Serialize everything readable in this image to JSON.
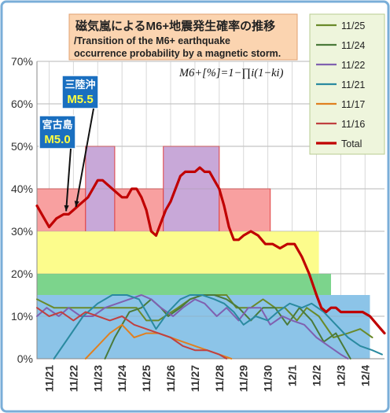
{
  "chart_data": {
    "type": "line",
    "title": "磁気嵐によるM6+地震発生確率の推移",
    "subtitle": "/Transition of the M6+ earthquake occurrence probability by a magnetic storm.",
    "formula": "M6+[%]=1−∏i(1−ki)",
    "ylim": [
      0,
      70
    ],
    "yticks": [
      0,
      10,
      20,
      30,
      40,
      50,
      60,
      70
    ],
    "ytick_labels": [
      "0%",
      "10%",
      "20%",
      "30%",
      "40%",
      "50%",
      "60%",
      "70%"
    ],
    "xlim": [
      20.5,
      34.8
    ],
    "xtick_values": [
      21,
      22,
      23,
      24,
      25,
      26,
      27,
      28,
      29,
      30,
      31,
      32,
      33,
      34
    ],
    "xtick_labels": [
      "11/21",
      "11/22",
      "11/23",
      "11/24",
      "11/25",
      "11/26",
      "11/27",
      "11/28",
      "11/29",
      "11/30",
      "12/1",
      "12/2",
      "12/3",
      "12/4"
    ],
    "colors": {
      "band_red": "#f8a0a0",
      "band_purple": "#c8a8d8",
      "band_yellow": "#fcfc8c",
      "band_green": "#7cd48c",
      "band_blue": "#8cc4e8",
      "total": "#c00000"
    },
    "bands": [
      {
        "from": 20.5,
        "to": 22.5,
        "level": 40,
        "color": "band_red"
      },
      {
        "from": 22.5,
        "to": 23.7,
        "level": 50,
        "color": "band_purple"
      },
      {
        "from": 23.7,
        "to": 25.7,
        "level": 40,
        "color": "band_red"
      },
      {
        "from": 25.7,
        "to": 28.0,
        "level": 50,
        "color": "band_purple"
      },
      {
        "from": 28.0,
        "to": 30.1,
        "level": 40,
        "color": "band_red"
      },
      {
        "from": 30.1,
        "to": 32.1,
        "level": 30,
        "color": "band_yellow"
      },
      {
        "from": 32.1,
        "to": 32.6,
        "level": 20,
        "color": "band_green"
      },
      {
        "from": 32.6,
        "to": 34.2,
        "level": 15,
        "color": "band_blue"
      },
      {
        "from": 20.5,
        "to": 32.1,
        "level": 30,
        "color": "band_yellow"
      },
      {
        "from": 20.5,
        "to": 32.1,
        "level": 20,
        "color": "band_green"
      },
      {
        "from": 20.5,
        "to": 32.6,
        "level": 15,
        "color": "band_blue"
      }
    ],
    "series": [
      {
        "name": "11/25",
        "color": "#6a8a2a",
        "x": [
          20.5,
          21.2,
          21.5,
          22.0,
          22.8,
          23.3,
          24.2,
          24.6,
          25.0,
          25.5,
          26.3,
          26.8,
          27.3,
          27.8,
          28.3,
          28.7,
          29.3,
          29.8,
          30.3,
          30.7,
          31.2,
          31.6,
          32.1,
          32.7,
          33.3,
          33.8,
          34.3
        ],
        "y": [
          14,
          12,
          12,
          12,
          12,
          12,
          12,
          12,
          9,
          9,
          12,
          14,
          15,
          15,
          15,
          12,
          12,
          14,
          12,
          12,
          9,
          12,
          10,
          5,
          6,
          7,
          5
        ]
      },
      {
        "name": "11/24",
        "color": "#4a7a3a",
        "x": [
          23.3,
          23.7,
          24.3,
          24.8,
          25.2,
          25.6,
          25.9,
          26.4,
          26.8,
          27.3,
          27.8,
          28.3,
          28.8,
          29.3,
          29.8,
          30.3,
          30.8,
          31.3,
          31.8,
          32.3,
          32.8,
          33.4
        ],
        "y": [
          0,
          5,
          11,
          12,
          14,
          12,
          10,
          12,
          14,
          15,
          15,
          14,
          12,
          9,
          12,
          12,
          8,
          12,
          9,
          4,
          6,
          0
        ]
      },
      {
        "name": "11/22",
        "color": "#8060b0",
        "x": [
          20.5,
          20.9,
          21.4,
          21.8,
          22.3,
          22.8,
          23.3,
          23.8,
          24.3,
          24.8,
          25.2,
          25.6,
          26.1,
          26.5,
          27.0,
          27.4,
          27.9,
          28.3,
          28.8,
          29.2,
          29.7,
          30.1,
          30.6,
          31.0,
          31.5,
          32.0,
          32.5,
          33.0,
          33.3
        ],
        "y": [
          10,
          12,
          10,
          12,
          10,
          10,
          12,
          13,
          14,
          15,
          14,
          12,
          10,
          12,
          14,
          13,
          10,
          12,
          9,
          12,
          12,
          8,
          10,
          9,
          8,
          5,
          3,
          1,
          0
        ]
      },
      {
        "name": "11/21",
        "color": "#2a8aa0",
        "x": [
          21.2,
          21.8,
          22.4,
          23.0,
          23.6,
          24.2,
          24.7,
          25.0,
          25.4,
          25.9,
          26.4,
          26.8,
          27.3,
          27.8,
          28.2,
          28.6,
          29.0,
          29.5,
          30.0,
          30.4,
          30.9,
          31.4,
          31.8,
          32.3,
          32.8,
          33.3,
          33.8,
          34.3,
          34.7
        ],
        "y": [
          0,
          5,
          10,
          13,
          15,
          15,
          14,
          11,
          7,
          11,
          14,
          15,
          15,
          14,
          13,
          11,
          8,
          10,
          9,
          11,
          13,
          12,
          13,
          11,
          8,
          5,
          3,
          2,
          1
        ]
      },
      {
        "name": "11/17",
        "color": "#e08020",
        "x": [
          22.5,
          23.0,
          23.5,
          24.0,
          24.5,
          25.0,
          25.5,
          26.0,
          26.5,
          27.0,
          27.5,
          28.0,
          28.5
        ],
        "y": [
          0,
          3,
          6,
          8,
          5,
          6,
          6,
          5,
          4,
          3,
          2,
          1,
          0
        ]
      },
      {
        "name": "11/16",
        "color": "#c04040",
        "x": [
          20.5,
          21.0,
          21.5,
          22.0,
          22.5,
          23.0,
          23.5,
          24.0,
          24.5,
          25.0,
          25.5,
          26.0,
          26.5,
          27.0,
          27.5,
          28.0,
          28.3
        ],
        "y": [
          12,
          10,
          11,
          9,
          11,
          10,
          9,
          10,
          8,
          7,
          6,
          5,
          3,
          2,
          2,
          1,
          0
        ]
      },
      {
        "name": "Total",
        "color": "#c00000",
        "x": [
          20.5,
          20.8,
          21.0,
          21.3,
          21.6,
          21.8,
          22.0,
          22.2,
          22.4,
          22.6,
          22.8,
          23.0,
          23.2,
          23.4,
          23.6,
          23.8,
          24.0,
          24.2,
          24.4,
          24.6,
          24.8,
          25.0,
          25.2,
          25.4,
          25.6,
          25.8,
          26.0,
          26.2,
          26.4,
          26.6,
          26.8,
          27.0,
          27.2,
          27.4,
          27.6,
          27.8,
          28.0,
          28.2,
          28.4,
          28.6,
          28.8,
          29.0,
          29.3,
          29.6,
          29.9,
          30.2,
          30.5,
          30.8,
          31.1,
          31.4,
          31.7,
          32.0,
          32.2,
          32.4,
          32.6,
          32.8,
          33.0,
          33.3,
          33.6,
          33.9,
          34.2,
          34.5,
          34.8
        ],
        "y": [
          36,
          33,
          31,
          33,
          34,
          34,
          35,
          36,
          37,
          38,
          40,
          42,
          42,
          41,
          40,
          39,
          38,
          38,
          40,
          40,
          38,
          35,
          30,
          29,
          32,
          35,
          37,
          40,
          43,
          44,
          44,
          44,
          45,
          44,
          44,
          42,
          40,
          36,
          31,
          28,
          28,
          29,
          30,
          29,
          27,
          27,
          26,
          27,
          27,
          24,
          20,
          15,
          12,
          11,
          12,
          12,
          11,
          11,
          11,
          11,
          10,
          8,
          6
        ]
      }
    ],
    "annotations": [
      {
        "location": "宮古島",
        "magnitude": "M5.0",
        "x": 21.7,
        "y": 34
      },
      {
        "location": "三陸沖",
        "magnitude": "M5.5",
        "x": 22.1,
        "y": 35
      }
    ]
  }
}
